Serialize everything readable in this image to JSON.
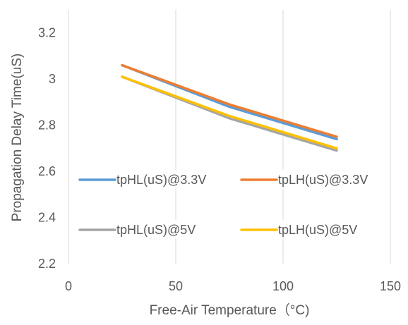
{
  "chart_data": {
    "type": "line",
    "title": "",
    "xlabel": "Free-Air Temperature（°C)",
    "ylabel": "Propagation Delay Time(uS)",
    "xlim": [
      0,
      150
    ],
    "ylim": [
      2.2,
      3.3
    ],
    "x_ticks": [
      "0",
      "50",
      "100",
      "150"
    ],
    "y_ticks": [
      "2.2",
      "2.4",
      "2.6",
      "2.8",
      "3",
      "3.2"
    ],
    "grid": "vertical",
    "legend_placement": "inside-bottom",
    "series": [
      {
        "name": "tpHL(uS)@3.3V",
        "color": "#5B9BD5",
        "x": [
          25,
          75,
          125
        ],
        "y": [
          3.06,
          2.88,
          2.74
        ]
      },
      {
        "name": "tpLH(uS)@3.3V",
        "color": "#ED7D31",
        "x": [
          25,
          75,
          125
        ],
        "y": [
          3.06,
          2.89,
          2.75
        ]
      },
      {
        "name": "tpHL(uS)@5V",
        "color": "#A5A5A5",
        "x": [
          25,
          75,
          125
        ],
        "y": [
          3.01,
          2.83,
          2.69
        ]
      },
      {
        "name": "tpLH(uS)@5V",
        "color": "#FFC000",
        "x": [
          25,
          75,
          125
        ],
        "y": [
          3.01,
          2.84,
          2.7
        ]
      }
    ]
  }
}
